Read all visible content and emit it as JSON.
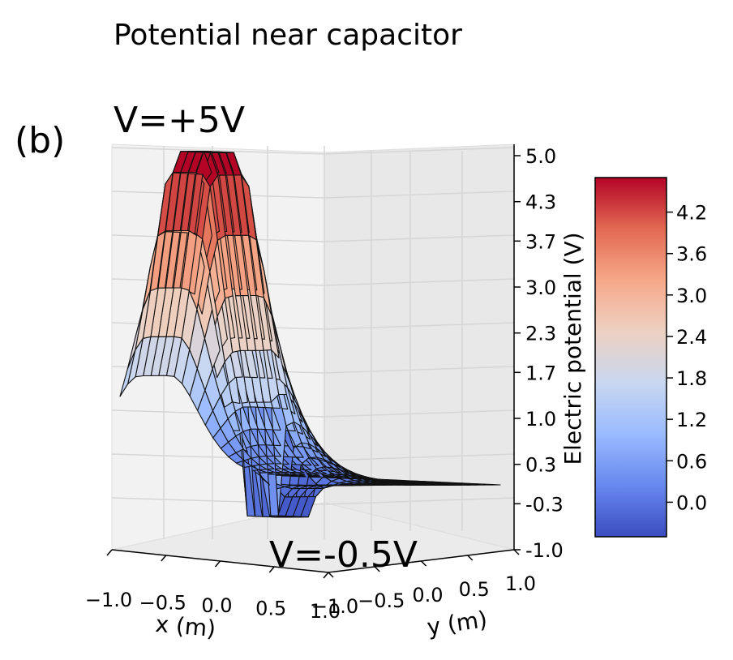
{
  "panel_label": "(b)",
  "chart_data": {
    "type": "surface3d",
    "title": "Potential near capacitor",
    "annotations": {
      "top_plate": "V=+5V",
      "bottom_plate": "V=-0.5V"
    },
    "xlabel": "x (m)",
    "ylabel": "y (m)",
    "zlabel": "Electric potential (V)",
    "xlim": [
      -1.0,
      1.0
    ],
    "ylim": [
      -1.0,
      1.0
    ],
    "zlim": [
      -1.0,
      5.0
    ],
    "x_ticks": [
      "−1.0",
      "−0.5",
      "0.0",
      "0.5",
      "1.0"
    ],
    "y_ticks": [
      "−1.0",
      "−0.5",
      "0.0",
      "0.5",
      "1.0"
    ],
    "z_ticks": [
      "5.0",
      "4.3",
      "3.7",
      "3.0",
      "2.3",
      "1.7",
      "1.0",
      "0.3",
      "-0.3",
      "-1.0"
    ],
    "colormap": "coolwarm",
    "colorbar": {
      "range": [
        -0.5,
        4.7
      ],
      "ticks": [
        "4.2",
        "3.6",
        "3.0",
        "2.4",
        "1.8",
        "1.2",
        "0.6",
        "0.0"
      ],
      "colors": [
        "#3b4cc0",
        "#6788ee",
        "#9abbff",
        "#c9d7f0",
        "#edd1c2",
        "#f7a889",
        "#e26952",
        "#b40426"
      ]
    },
    "grid": true,
    "surface": {
      "peak_value": 5.0,
      "trough_value": -0.5,
      "base_value": 0.0
    }
  }
}
